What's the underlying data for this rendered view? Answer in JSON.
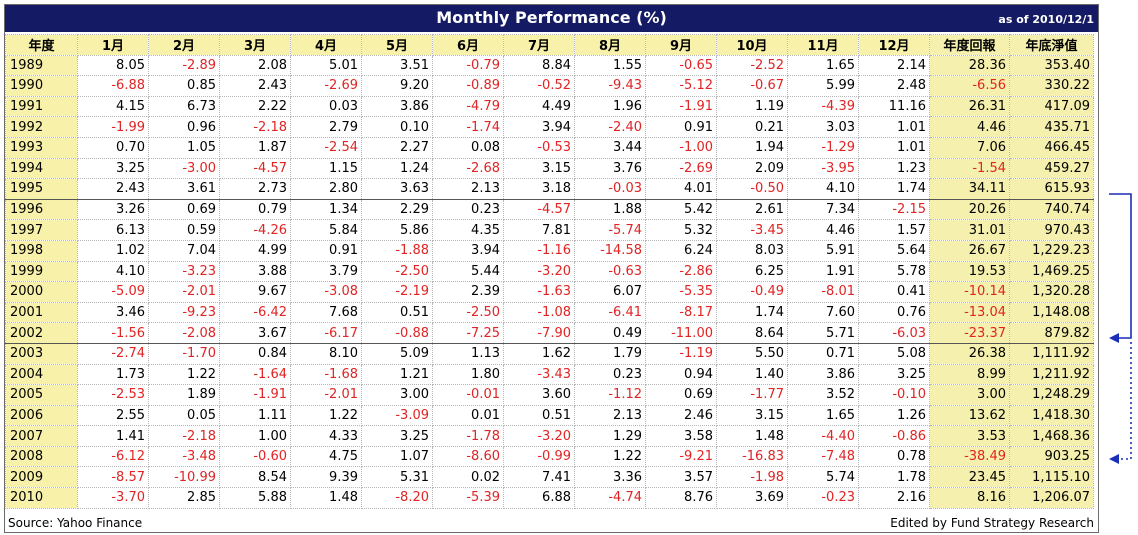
{
  "title": "Monthly Performance (%)",
  "as_of": "as of 2010/12/1",
  "headers": [
    "年度",
    "1月",
    "2月",
    "3月",
    "4月",
    "5月",
    "6月",
    "7月",
    "8月",
    "9月",
    "10月",
    "11月",
    "12月",
    "年度回報",
    "年底淨值"
  ],
  "rows": [
    [
      "1989",
      "8.05",
      "-2.89",
      "2.08",
      "5.01",
      "3.51",
      "-0.79",
      "8.84",
      "1.55",
      "-0.65",
      "-2.52",
      "1.65",
      "2.14",
      "28.36",
      "353.40"
    ],
    [
      "1990",
      "-6.88",
      "0.85",
      "2.43",
      "-2.69",
      "9.20",
      "-0.89",
      "-0.52",
      "-9.43",
      "-5.12",
      "-0.67",
      "5.99",
      "2.48",
      "-6.56",
      "330.22"
    ],
    [
      "1991",
      "4.15",
      "6.73",
      "2.22",
      "0.03",
      "3.86",
      "-4.79",
      "4.49",
      "1.96",
      "-1.91",
      "1.19",
      "-4.39",
      "11.16",
      "26.31",
      "417.09"
    ],
    [
      "1992",
      "-1.99",
      "0.96",
      "-2.18",
      "2.79",
      "0.10",
      "-1.74",
      "3.94",
      "-2.40",
      "0.91",
      "0.21",
      "3.03",
      "1.01",
      "4.46",
      "435.71"
    ],
    [
      "1993",
      "0.70",
      "1.05",
      "1.87",
      "-2.54",
      "2.27",
      "0.08",
      "-0.53",
      "3.44",
      "-1.00",
      "1.94",
      "-1.29",
      "1.01",
      "7.06",
      "466.45"
    ],
    [
      "1994",
      "3.25",
      "-3.00",
      "-4.57",
      "1.15",
      "1.24",
      "-2.68",
      "3.15",
      "3.76",
      "-2.69",
      "2.09",
      "-3.95",
      "1.23",
      "-1.54",
      "459.27"
    ],
    [
      "1995",
      "2.43",
      "3.61",
      "2.73",
      "2.80",
      "3.63",
      "2.13",
      "3.18",
      "-0.03",
      "4.01",
      "-0.50",
      "4.10",
      "1.74",
      "34.11",
      "615.93"
    ],
    [
      "1996",
      "3.26",
      "0.69",
      "0.79",
      "1.34",
      "2.29",
      "0.23",
      "-4.57",
      "1.88",
      "5.42",
      "2.61",
      "7.34",
      "-2.15",
      "20.26",
      "740.74"
    ],
    [
      "1997",
      "6.13",
      "0.59",
      "-4.26",
      "5.84",
      "5.86",
      "4.35",
      "7.81",
      "-5.74",
      "5.32",
      "-3.45",
      "4.46",
      "1.57",
      "31.01",
      "970.43"
    ],
    [
      "1998",
      "1.02",
      "7.04",
      "4.99",
      "0.91",
      "-1.88",
      "3.94",
      "-1.16",
      "-14.58",
      "6.24",
      "8.03",
      "5.91",
      "5.64",
      "26.67",
      "1,229.23"
    ],
    [
      "1999",
      "4.10",
      "-3.23",
      "3.88",
      "3.79",
      "-2.50",
      "5.44",
      "-3.20",
      "-0.63",
      "-2.86",
      "6.25",
      "1.91",
      "5.78",
      "19.53",
      "1,469.25"
    ],
    [
      "2000",
      "-5.09",
      "-2.01",
      "9.67",
      "-3.08",
      "-2.19",
      "2.39",
      "-1.63",
      "6.07",
      "-5.35",
      "-0.49",
      "-8.01",
      "0.41",
      "-10.14",
      "1,320.28"
    ],
    [
      "2001",
      "3.46",
      "-9.23",
      "-6.42",
      "7.68",
      "0.51",
      "-2.50",
      "-1.08",
      "-6.41",
      "-8.17",
      "1.74",
      "7.60",
      "0.76",
      "-13.04",
      "1,148.08"
    ],
    [
      "2002",
      "-1.56",
      "-2.08",
      "3.67",
      "-6.17",
      "-0.88",
      "-7.25",
      "-7.90",
      "0.49",
      "-11.00",
      "8.64",
      "5.71",
      "-6.03",
      "-23.37",
      "879.82"
    ],
    [
      "2003",
      "-2.74",
      "-1.70",
      "0.84",
      "8.10",
      "5.09",
      "1.13",
      "1.62",
      "1.79",
      "-1.19",
      "5.50",
      "0.71",
      "5.08",
      "26.38",
      "1,111.92"
    ],
    [
      "2004",
      "1.73",
      "1.22",
      "-1.64",
      "-1.68",
      "1.21",
      "1.80",
      "-3.43",
      "0.23",
      "0.94",
      "1.40",
      "3.86",
      "3.25",
      "8.99",
      "1,211.92"
    ],
    [
      "2005",
      "-2.53",
      "1.89",
      "-1.91",
      "-2.01",
      "3.00",
      "-0.01",
      "3.60",
      "-1.12",
      "0.69",
      "-1.77",
      "3.52",
      "-0.10",
      "3.00",
      "1,248.29"
    ],
    [
      "2006",
      "2.55",
      "0.05",
      "1.11",
      "1.22",
      "-3.09",
      "0.01",
      "0.51",
      "2.13",
      "2.46",
      "3.15",
      "1.65",
      "1.26",
      "13.62",
      "1,418.30"
    ],
    [
      "2007",
      "1.41",
      "-2.18",
      "1.00",
      "4.33",
      "3.25",
      "-1.78",
      "-3.20",
      "1.29",
      "3.58",
      "1.48",
      "-4.40",
      "-0.86",
      "3.53",
      "1,468.36"
    ],
    [
      "2008",
      "-6.12",
      "-3.48",
      "-0.60",
      "4.75",
      "1.07",
      "-8.60",
      "-0.99",
      "1.22",
      "-9.21",
      "-16.83",
      "-7.48",
      "0.78",
      "-38.49",
      "903.25"
    ],
    [
      "2009",
      "-8.57",
      "-10.99",
      "8.54",
      "9.39",
      "5.31",
      "0.02",
      "7.41",
      "3.36",
      "3.57",
      "-1.98",
      "5.74",
      "1.78",
      "23.45",
      "1,115.10"
    ],
    [
      "2010",
      "-3.70",
      "2.85",
      "5.88",
      "1.48",
      "-8.20",
      "-5.39",
      "6.88",
      "-4.74",
      "8.76",
      "3.69",
      "-0.23",
      "2.16",
      "8.16",
      "1,206.07"
    ]
  ],
  "footer": {
    "source": "Source: Yahoo Finance",
    "edited_by": "Edited by Fund Strategy Research"
  },
  "colors": {
    "title_bg": "#141a63",
    "header_bg": "#f7f1a9",
    "negative": "#e02424",
    "arrow": "#1a2fb5"
  }
}
